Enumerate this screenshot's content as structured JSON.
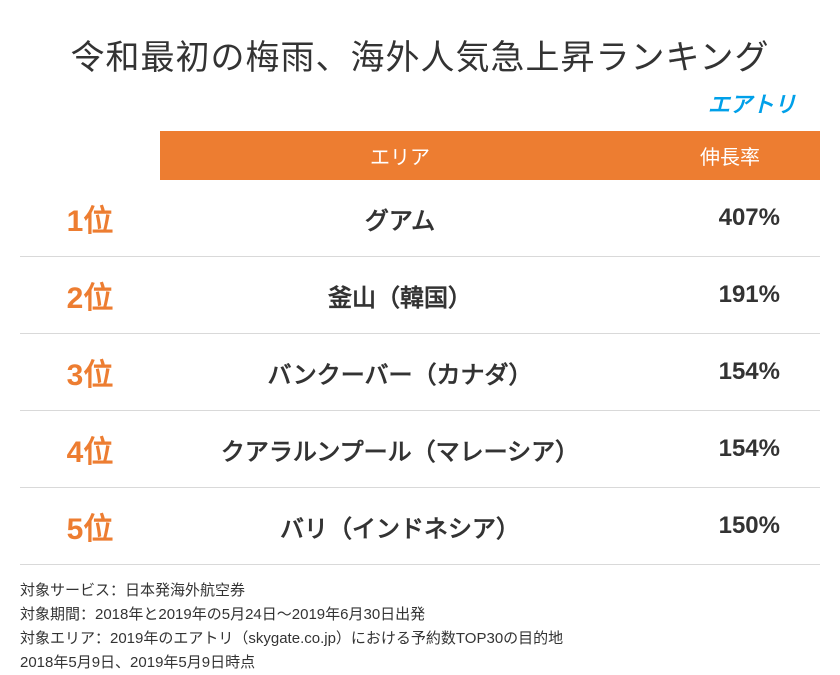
{
  "title": "令和最初の梅雨、海外人気急上昇ランキング",
  "brand": "エアトリ",
  "columns": {
    "area": "エリア",
    "rate": "伸長率"
  },
  "rows": [
    {
      "rank": "1位",
      "area": "グアム",
      "rate": "407%"
    },
    {
      "rank": "2位",
      "area": "釜山（韓国）",
      "rate": "191%"
    },
    {
      "rank": "3位",
      "area": "バンクーバー（カナダ）",
      "rate": "154%"
    },
    {
      "rank": "4位",
      "area": "クアラルンプール（マレーシア）",
      "rate": "154%"
    },
    {
      "rank": "5位",
      "area": "バリ（インドネシア）",
      "rate": "150%"
    }
  ],
  "notes": [
    "対象サービス：日本発海外航空券",
    "対象期間：2018年と2019年の5月24日～2019年6月30日出発",
    "対象エリア：2019年のエアトリ（skygate.co.jp）における予約数TOP30の目的地",
    "2018年5月9日、2019年5月9日時点"
  ],
  "colors": {
    "accent": "#ed7d31",
    "brand": "#00a0e9",
    "text": "#333333",
    "border": "#d9d9d9",
    "background": "#ffffff"
  }
}
